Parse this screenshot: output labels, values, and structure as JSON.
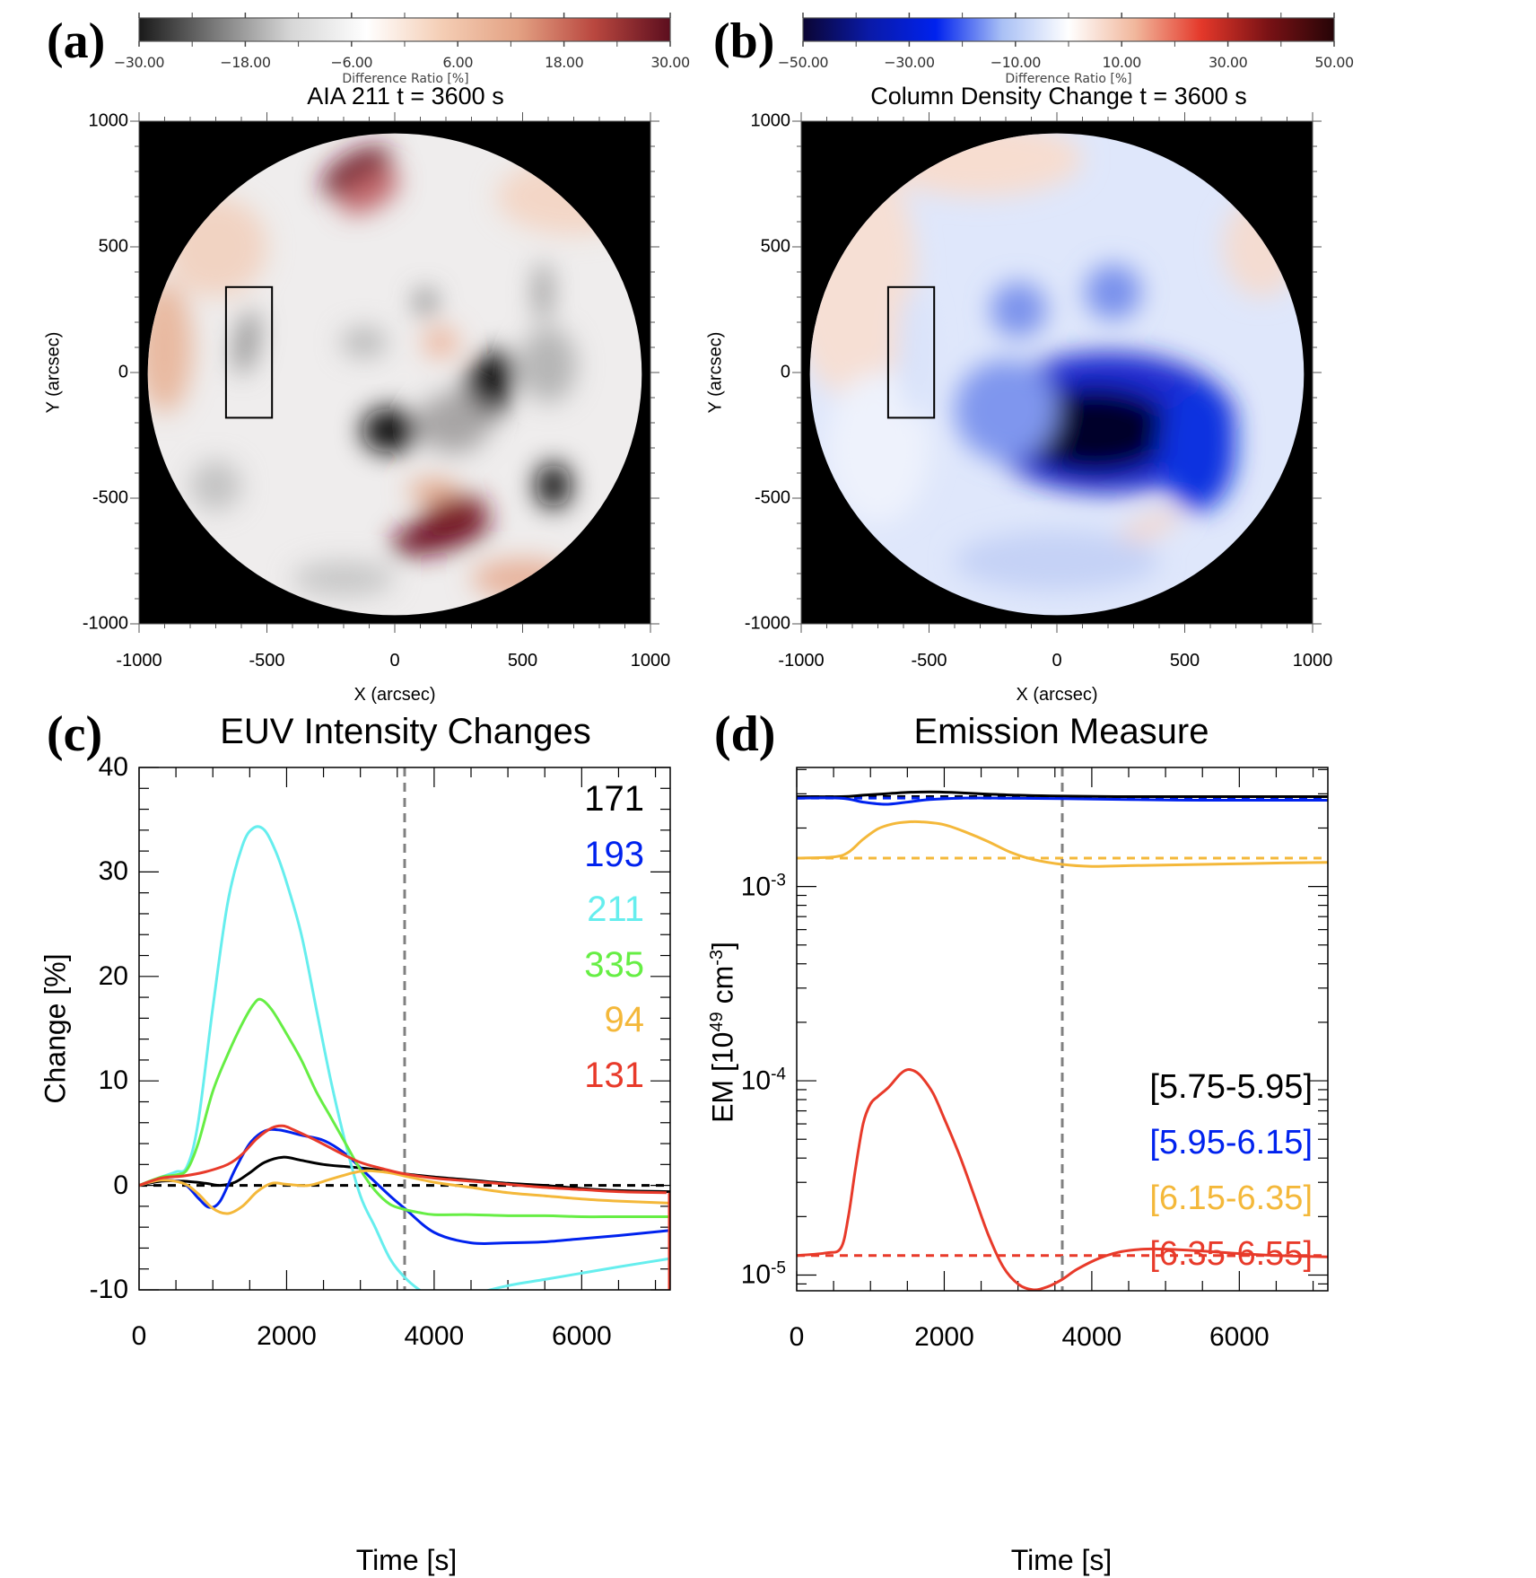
{
  "panels": {
    "a": {
      "letter": "(a)",
      "title": "AIA 211 t = 3600 s",
      "colorbar": {
        "ticks": [
          "−30.00",
          "−18.00",
          "−6.00",
          "6.00",
          "18.00",
          "30.00"
        ],
        "label": "Difference Ratio [%]",
        "range": [
          -30,
          30
        ],
        "colors": [
          "#1a1a1a",
          "#7a7a7a",
          "#d6d6d6",
          "#ffffff",
          "#f4cdb4",
          "#e3a183",
          "#b9473f",
          "#5c0e1e"
        ]
      },
      "xlabel": "X (arcsec)",
      "ylabel": "Y (arcsec)",
      "xticks": [
        "-1000",
        "-500",
        "0",
        "500",
        "1000"
      ],
      "yticks": [
        "1000",
        "500",
        "0",
        "-500",
        "-1000"
      ],
      "box_arcsec": {
        "x": [
          -660,
          -480
        ],
        "y": [
          -180,
          340
        ]
      }
    },
    "b": {
      "letter": "(b)",
      "title": "Column Density Change t = 3600 s",
      "colorbar": {
        "ticks": [
          "−50.00",
          "−30.00",
          "−10.00",
          "10.00",
          "30.00",
          "50.00"
        ],
        "label": "Difference Ratio [%]",
        "range": [
          -50,
          50
        ],
        "colors": [
          "#0b0533",
          "#0a1aa8",
          "#0022ee",
          "#a9c0f5",
          "#ffffff",
          "#f1b79c",
          "#e4382a",
          "#7a1215",
          "#260407"
        ]
      },
      "xlabel": "X (arcsec)",
      "ylabel": "Y (arcsec)",
      "xticks": [
        "-1000",
        "-500",
        "0",
        "500",
        "1000"
      ],
      "yticks": [
        "1000",
        "500",
        "0",
        "-500",
        "-1000"
      ],
      "box_arcsec": {
        "x": [
          -660,
          -480
        ],
        "y": [
          -180,
          340
        ]
      }
    },
    "c": {
      "letter": "(c)"
    },
    "d": {
      "letter": "(d)"
    }
  },
  "chart_data": [
    {
      "id": "c",
      "type": "line",
      "title": "EUV Intensity Changes",
      "xlabel": "Time [s]",
      "ylabel": "Change [%]",
      "xlim": [
        0,
        7200
      ],
      "ylim": [
        -10,
        40
      ],
      "xticks": [
        0,
        2000,
        4000,
        6000
      ],
      "yticks": [
        -10,
        0,
        10,
        20,
        30,
        40
      ],
      "grid": false,
      "legend_position": "top-right",
      "vline": {
        "x": 3600,
        "style": "dashed",
        "color": "#808080"
      },
      "hline": {
        "y": 0,
        "style": "dashed",
        "color": "#000000"
      },
      "series": [
        {
          "name": "171",
          "color": "#000000",
          "x": [
            0,
            300,
            600,
            900,
            1100,
            1300,
            1500,
            1700,
            1950,
            2200,
            2500,
            2800,
            3100,
            3400,
            3600,
            4000,
            4500,
            5000,
            5500,
            6000,
            6500,
            7200
          ],
          "y": [
            0,
            0.4,
            0.4,
            0.2,
            0,
            0.3,
            1.2,
            2.2,
            2.7,
            2.4,
            2.0,
            1.8,
            1.6,
            1.3,
            1.1,
            0.8,
            0.5,
            0.2,
            0,
            -0.3,
            -0.5,
            -0.6
          ]
        },
        {
          "name": "193",
          "color": "#0022ee",
          "x": [
            0,
            300,
            600,
            800,
            950,
            1100,
            1300,
            1500,
            1700,
            1900,
            2200,
            2500,
            2800,
            3100,
            3400,
            3600,
            4000,
            4500,
            5000,
            5500,
            6000,
            6500,
            7200
          ],
          "y": [
            0,
            0.5,
            0.2,
            -1.2,
            -2.1,
            -1.5,
            1.5,
            4.0,
            5.2,
            5.3,
            4.8,
            4.3,
            3.0,
            1.0,
            -1.0,
            -2.2,
            -4.5,
            -5.5,
            -5.5,
            -5.4,
            -5.1,
            -4.8,
            -4.3
          ]
        },
        {
          "name": "211",
          "color": "#66eeee",
          "x": [
            0,
            300,
            500,
            650,
            800,
            1000,
            1200,
            1400,
            1550,
            1700,
            1850,
            2000,
            2200,
            2400,
            2600,
            2800,
            3000,
            3200,
            3400,
            3600,
            3800,
            4000,
            4300,
            4600,
            5000,
            5500,
            6000,
            6500,
            7200
          ],
          "y": [
            0,
            0.8,
            1.3,
            1.8,
            6,
            17,
            27,
            32.5,
            34.2,
            34.0,
            32,
            29,
            24,
            17,
            10,
            4,
            -1,
            -4,
            -7,
            -8.8,
            -10,
            -10.8,
            -11,
            -10.3,
            -9.6,
            -9,
            -8.4,
            -7.8,
            -7
          ]
        },
        {
          "name": "335",
          "color": "#66ee44",
          "x": [
            0,
            300,
            500,
            650,
            800,
            1000,
            1200,
            1400,
            1550,
            1650,
            1800,
            2000,
            2200,
            2400,
            2600,
            2800,
            3000,
            3200,
            3400,
            3600,
            3800,
            4000,
            4500,
            5000,
            5500,
            6000,
            6500,
            7200
          ],
          "y": [
            0,
            0.8,
            1.0,
            1.5,
            4,
            9,
            12.5,
            15.5,
            17.3,
            17.8,
            16.8,
            14.5,
            12,
            9,
            6.5,
            4,
            1.5,
            -0.5,
            -1.8,
            -2.3,
            -2.6,
            -2.8,
            -2.8,
            -2.9,
            -2.9,
            -3.0,
            -3.0,
            -3.0
          ]
        },
        {
          "name": "94",
          "color": "#f4b83a",
          "x": [
            0,
            300,
            600,
            800,
            1000,
            1200,
            1400,
            1600,
            1800,
            2000,
            2300,
            2600,
            2900,
            3100,
            3400,
            3600,
            4000,
            4500,
            5000,
            5500,
            6000,
            6500,
            7200
          ],
          "y": [
            0,
            0.5,
            0.2,
            -0.8,
            -2.2,
            -2.7,
            -2.0,
            -0.6,
            0.2,
            0.1,
            0,
            0.6,
            1.2,
            1.4,
            1.2,
            0.9,
            0.3,
            -0.2,
            -0.7,
            -1.0,
            -1.3,
            -1.5,
            -1.7
          ]
        },
        {
          "name": "131",
          "color": "#e83a2a",
          "x": [
            0,
            300,
            600,
            900,
            1200,
            1400,
            1600,
            1800,
            1950,
            2100,
            2400,
            2700,
            3000,
            3300,
            3600,
            4000,
            4500,
            5000,
            5500,
            6000,
            6500,
            7150
          ],
          "y": [
            0,
            0.7,
            0.9,
            1.3,
            2.0,
            3.0,
            4.5,
            5.5,
            5.7,
            5.3,
            4.3,
            3.2,
            2.2,
            1.6,
            1.1,
            0.7,
            0.4,
            0.1,
            -0.2,
            -0.4,
            -0.6,
            -0.7
          ]
        }
      ]
    },
    {
      "id": "d",
      "type": "line",
      "title": "Emission Measure",
      "xlabel": "Time [s]",
      "ylabel": "EM [10^49 cm^-3]",
      "ylabel_parts": {
        "prefix": "EM [10",
        "exp1": "49",
        "mid": " cm",
        "exp2": "-3",
        "suffix": "]"
      },
      "yscale": "log",
      "xlim": [
        0,
        7200
      ],
      "ylim": [
        8.3e-06,
        0.0041
      ],
      "xticks": [
        0,
        2000,
        4000,
        6000
      ],
      "yticks": [
        1e-05,
        0.0001,
        0.001
      ],
      "ytick_labels": [
        {
          "base": "10",
          "exp": "-5"
        },
        {
          "base": "10",
          "exp": "-4"
        },
        {
          "base": "10",
          "exp": "-3"
        }
      ],
      "grid": false,
      "legend_position": "bottom-right",
      "vline": {
        "x": 3600,
        "style": "dashed",
        "color": "#808080"
      },
      "series": [
        {
          "name": "[5.75-5.95]",
          "color": "#000000",
          "baseline": 0.0029,
          "x": [
            0,
            600,
            900,
            1200,
            1500,
            1800,
            2100,
            2500,
            3000,
            3600,
            4500,
            5500,
            6500,
            7200
          ],
          "y": [
            0.0029,
            0.0029,
            0.00295,
            0.003,
            0.00305,
            0.00307,
            0.00305,
            0.003,
            0.00295,
            0.00292,
            0.0029,
            0.0029,
            0.0029,
            0.0029
          ]
        },
        {
          "name": "[5.95-6.15]",
          "color": "#0022ee",
          "baseline": 0.00285,
          "x": [
            0,
            600,
            900,
            1200,
            1500,
            1800,
            2200,
            2800,
            3600,
            4500,
            5500,
            6500,
            7200
          ],
          "y": [
            0.00285,
            0.00285,
            0.00272,
            0.00265,
            0.00272,
            0.0028,
            0.00285,
            0.00285,
            0.00283,
            0.0028,
            0.00278,
            0.00278,
            0.00278
          ]
        },
        {
          "name": "[6.15-6.35]",
          "color": "#f4b83a",
          "baseline": 0.0014,
          "x": [
            0,
            500,
            700,
            900,
            1100,
            1300,
            1500,
            1700,
            2000,
            2300,
            2600,
            2900,
            3200,
            3600,
            4000,
            4500,
            5500,
            6500,
            7200
          ],
          "y": [
            0.0014,
            0.00142,
            0.0015,
            0.00175,
            0.00198,
            0.0021,
            0.00215,
            0.00215,
            0.00208,
            0.0019,
            0.0017,
            0.0015,
            0.00138,
            0.0013,
            0.00127,
            0.00128,
            0.0013,
            0.00132,
            0.00133
          ]
        },
        {
          "name": "[6.35-6.55]",
          "color": "#e83a2a",
          "baseline": 1.26e-05,
          "x": [
            0,
            400,
            600,
            700,
            800,
            900,
            1000,
            1100,
            1250,
            1400,
            1500,
            1600,
            1700,
            1850,
            2000,
            2200,
            2400,
            2600,
            2800,
            3000,
            3200,
            3400,
            3600,
            3800,
            4100,
            4400,
            4700,
            5000,
            5500,
            6000,
            6500,
            7200
          ],
          "y": [
            1.26e-05,
            1.3e-05,
            1.38e-05,
            2e-05,
            3.6e-05,
            6e-05,
            7.6e-05,
            8.3e-05,
            9.3e-05,
            0.000108,
            0.000114,
            0.000112,
            0.000104,
            8.6e-05,
            6.4e-05,
            4.2e-05,
            2.6e-05,
            1.6e-05,
            1.1e-05,
            9e-06,
            8.4e-06,
            8.7e-06,
            9.5e-06,
            1.07e-05,
            1.22e-05,
            1.32e-05,
            1.36e-05,
            1.36e-05,
            1.33e-05,
            1.29e-05,
            1.26e-05,
            1.24e-05
          ]
        }
      ]
    }
  ]
}
